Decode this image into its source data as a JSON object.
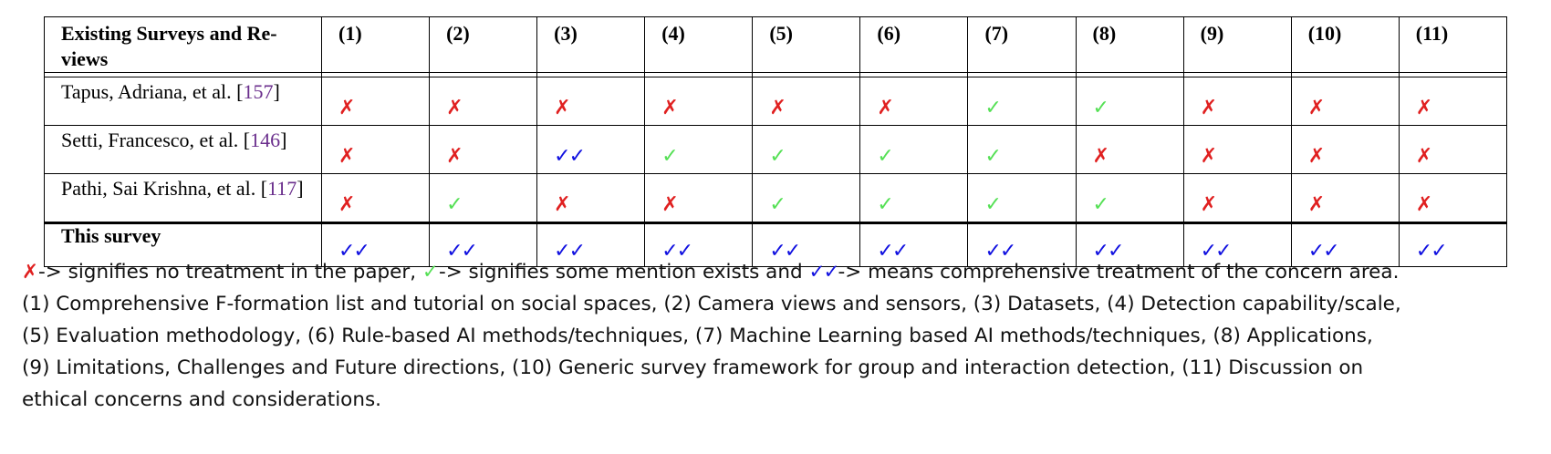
{
  "table": {
    "header_first": "Existing Surveys and Re-views",
    "columns": [
      "(1)",
      "(2)",
      "(3)",
      "(4)",
      "(5)",
      "(6)",
      "(7)",
      "(8)",
      "(9)",
      "(10)",
      "(11)"
    ],
    "symbols": {
      "none": "✗",
      "some": "✓",
      "full": "✓✓"
    },
    "colors": {
      "none": "#e02020",
      "some": "#55e055",
      "full": "#1010e0",
      "citation": "#6a2e8c"
    },
    "rows": [
      {
        "author": "Tapus, Adriana, et al. [",
        "cite": "157",
        "close": "]",
        "marks": [
          "none",
          "none",
          "none",
          "none",
          "none",
          "none",
          "some",
          "some",
          "none",
          "none",
          "none"
        ]
      },
      {
        "author": "Setti, Francesco, et al. [",
        "cite": "146",
        "close": "]",
        "marks": [
          "none",
          "none",
          "full",
          "some",
          "some",
          "some",
          "some",
          "none",
          "none",
          "none",
          "none"
        ]
      },
      {
        "author": "Pathi, Sai Krishna, et al. [",
        "cite": "117",
        "close": "]",
        "marks": [
          "none",
          "some",
          "none",
          "none",
          "some",
          "some",
          "some",
          "some",
          "none",
          "none",
          "none"
        ]
      }
    ],
    "this_survey": {
      "label": "This survey",
      "marks": [
        "full",
        "full",
        "full",
        "full",
        "full",
        "full",
        "full",
        "full",
        "full",
        "full",
        "full"
      ]
    }
  },
  "legend": {
    "sym_none": "✗",
    "text_none": "-> signifies no treatment in the paper, ",
    "sym_some": "✓",
    "text_some": "-> signifies some mention exists and ",
    "sym_full": "✓✓",
    "text_full": "-> means comprehensive treatment of the concern area.",
    "line2": "(1) Comprehensive F-formation list and tutorial on social spaces, (2) Camera views and sensors, (3) Datasets, (4) Detection capability/scale,",
    "line3": "(5) Evaluation methodology, (6) Rule-based AI methods/techniques, (7) Machine Learning based AI methods/techniques, (8) Applications,",
    "line4": "(9) Limitations, Challenges and Future directions, (10) Generic survey framework for group and interaction detection, (11) Discussion on",
    "line5": "ethical concerns and considerations."
  }
}
